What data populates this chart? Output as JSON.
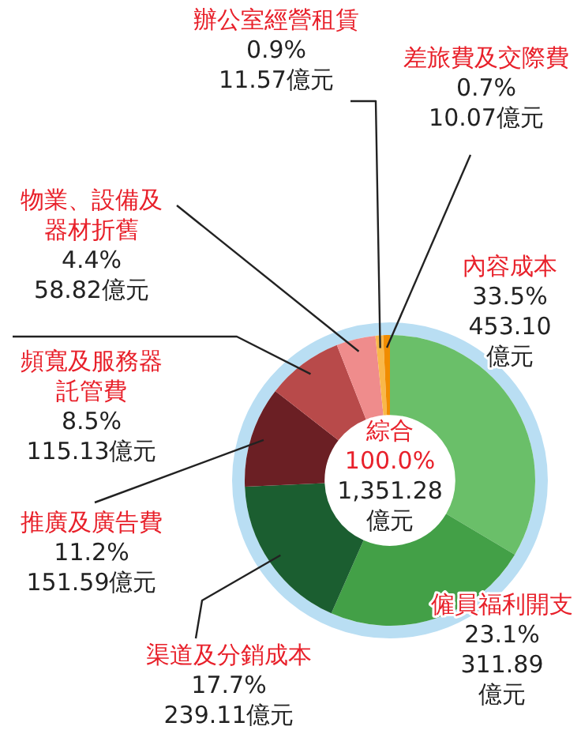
{
  "chart_data": {
    "type": "donut",
    "categories": [
      "內容成本",
      "僱員福利開支",
      "渠道及分銷成本",
      "推廣及廣告費",
      "頻寬及服務器託管費",
      "物業、設備及器材折舊",
      "辦公室經營租賃",
      "差旅費及交際費"
    ],
    "values": [
      453.1,
      311.89,
      239.11,
      151.59,
      115.13,
      58.82,
      11.57,
      10.07
    ],
    "colors": [
      "#6abf69",
      "#43a047",
      "#1b5e30",
      "#6b1f24",
      "#b84a4a",
      "#ef8c8c",
      "#f9b84a",
      "#f08c00"
    ],
    "value_labels": [
      "33.5%\n453.10\n億元",
      "23.1%\n311.89\n億元",
      "17.7%\n239.11億元",
      "11.2%\n151.59億元",
      "8.5%\n115.13億元",
      "4.4%\n58.82億元",
      "0.9%\n11.57億元",
      "0.7%\n10.07億元"
    ],
    "annotations": [
      "綜合",
      "100.0%",
      "1,351.28",
      "億元"
    ]
  }
}
